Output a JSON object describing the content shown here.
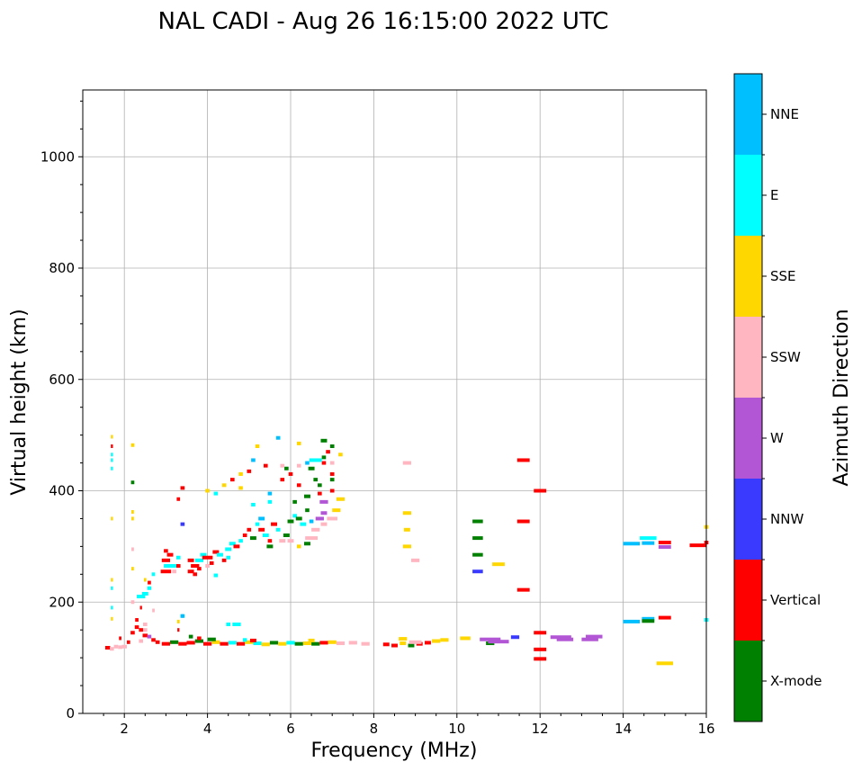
{
  "chart_data": {
    "type": "scatter",
    "title": "NAL CADI - Aug 26 16:15:00 2022 UTC",
    "xlabel": "Frequency (MHz)",
    "ylabel": "Virtual height (km)",
    "xlim": [
      1,
      16
    ],
    "ylim": [
      0,
      1120
    ],
    "xticks": [
      2,
      4,
      6,
      8,
      10,
      12,
      14,
      16
    ],
    "yticks": [
      0,
      200,
      400,
      600,
      800,
      1000
    ],
    "grid": true,
    "colorbar": {
      "label": "Azimuth Direction",
      "categories": [
        {
          "name": "X-mode",
          "color": "#008000"
        },
        {
          "name": "Vertical",
          "color": "#ff0000"
        },
        {
          "name": "NNW",
          "color": "#3a3aff"
        },
        {
          "name": "W",
          "color": "#b356d6"
        },
        {
          "name": "SSW",
          "color": "#ffb6c1"
        },
        {
          "name": "SSE",
          "color": "#ffd700"
        },
        {
          "name": "E",
          "color": "#00ffff"
        },
        {
          "name": "NNE",
          "color": "#00bfff"
        }
      ]
    },
    "points": [
      [
        1.6,
        118,
        1,
        0.12
      ],
      [
        1.7,
        116,
        4,
        0.1
      ],
      [
        1.8,
        120,
        4,
        0.1
      ],
      [
        1.9,
        119,
        4,
        0.1
      ],
      [
        2.0,
        120,
        4,
        0.12
      ],
      [
        1.7,
        190,
        6,
        0.05
      ],
      [
        1.7,
        170,
        5,
        0.05
      ],
      [
        1.7,
        240,
        5,
        0.05
      ],
      [
        1.7,
        225,
        6,
        0.05
      ],
      [
        1.7,
        350,
        5,
        0.05
      ],
      [
        1.7,
        440,
        6,
        0.05
      ],
      [
        1.7,
        455,
        6,
        0.05
      ],
      [
        1.7,
        480,
        1,
        0.05
      ],
      [
        1.7,
        497,
        5,
        0.05
      ],
      [
        1.7,
        465,
        6,
        0.05
      ],
      [
        1.9,
        135,
        1,
        0.06
      ],
      [
        2.1,
        128,
        1,
        0.08
      ],
      [
        2.2,
        145,
        1,
        0.1
      ],
      [
        2.3,
        168,
        1,
        0.08
      ],
      [
        2.3,
        155,
        1,
        0.1
      ],
      [
        2.4,
        150,
        1,
        0.1
      ],
      [
        2.5,
        140,
        1,
        0.12
      ],
      [
        2.5,
        160,
        4,
        0.1
      ],
      [
        2.6,
        138,
        3,
        0.1
      ],
      [
        2.7,
        132,
        1,
        0.1
      ],
      [
        2.8,
        128,
        1,
        0.1
      ],
      [
        2.5,
        150,
        4,
        0.1
      ],
      [
        2.4,
        130,
        4,
        0.1
      ],
      [
        2.2,
        200,
        4,
        0.08
      ],
      [
        2.4,
        210,
        6,
        0.2
      ],
      [
        2.5,
        215,
        6,
        0.15
      ],
      [
        2.6,
        225,
        6,
        0.1
      ],
      [
        2.6,
        235,
        1,
        0.08
      ],
      [
        2.7,
        250,
        6,
        0.08
      ],
      [
        2.5,
        240,
        5,
        0.06
      ],
      [
        2.2,
        260,
        5,
        0.06
      ],
      [
        2.2,
        295,
        4,
        0.06
      ],
      [
        2.2,
        350,
        5,
        0.06
      ],
      [
        2.2,
        362,
        5,
        0.06
      ],
      [
        2.2,
        415,
        0,
        0.08
      ],
      [
        2.2,
        482,
        5,
        0.08
      ],
      [
        2.4,
        190,
        1,
        0.05
      ],
      [
        2.7,
        185,
        4,
        0.06
      ],
      [
        3.0,
        255,
        1,
        0.25
      ],
      [
        3.1,
        265,
        6,
        0.3
      ],
      [
        3.0,
        275,
        1,
        0.2
      ],
      [
        3.1,
        285,
        1,
        0.15
      ],
      [
        3.0,
        292,
        1,
        0.1
      ],
      [
        3.3,
        280,
        6,
        0.1
      ],
      [
        3.3,
        265,
        1,
        0.1
      ],
      [
        3.2,
        255,
        4,
        0.1
      ],
      [
        3.4,
        175,
        7,
        0.1
      ],
      [
        3.3,
        165,
        5,
        0.06
      ],
      [
        3.3,
        150,
        1,
        0.05
      ],
      [
        3.4,
        340,
        2,
        0.1
      ],
      [
        3.3,
        385,
        1,
        0.08
      ],
      [
        3.4,
        405,
        1,
        0.1
      ],
      [
        3.6,
        255,
        1,
        0.15
      ],
      [
        3.7,
        265,
        1,
        0.2
      ],
      [
        3.8,
        275,
        6,
        0.2
      ],
      [
        3.9,
        285,
        6,
        0.15
      ],
      [
        4.0,
        280,
        1,
        0.25
      ],
      [
        4.1,
        270,
        1,
        0.1
      ],
      [
        3.6,
        275,
        1,
        0.15
      ],
      [
        3.8,
        260,
        1,
        0.1
      ],
      [
        4.0,
        265,
        4,
        0.1
      ],
      [
        4.2,
        248,
        6,
        0.1
      ],
      [
        3.7,
        250,
        1,
        0.1
      ],
      [
        4.2,
        290,
        1,
        0.15
      ],
      [
        4.3,
        285,
        6,
        0.15
      ],
      [
        4.4,
        275,
        1,
        0.1
      ],
      [
        4.5,
        280,
        6,
        0.1
      ],
      [
        4.5,
        295,
        6,
        0.15
      ],
      [
        4.6,
        305,
        6,
        0.15
      ],
      [
        4.7,
        300,
        1,
        0.15
      ],
      [
        4.8,
        310,
        6,
        0.1
      ],
      [
        4.9,
        320,
        1,
        0.1
      ],
      [
        5.0,
        330,
        1,
        0.1
      ],
      [
        5.1,
        315,
        0,
        0.15
      ],
      [
        5.2,
        340,
        6,
        0.1
      ],
      [
        5.3,
        350,
        7,
        0.15
      ],
      [
        5.3,
        330,
        1,
        0.15
      ],
      [
        5.4,
        320,
        6,
        0.15
      ],
      [
        5.5,
        300,
        0,
        0.15
      ],
      [
        5.5,
        310,
        1,
        0.1
      ],
      [
        5.6,
        340,
        1,
        0.15
      ],
      [
        5.7,
        330,
        6,
        0.1
      ],
      [
        5.9,
        320,
        0,
        0.15
      ],
      [
        5.8,
        310,
        4,
        0.15
      ],
      [
        6.0,
        345,
        0,
        0.15
      ],
      [
        6.1,
        355,
        6,
        0.1
      ],
      [
        6.2,
        350,
        0,
        0.15
      ],
      [
        6.3,
        340,
        6,
        0.15
      ],
      [
        6.5,
        345,
        7,
        0.1
      ],
      [
        6.6,
        330,
        4,
        0.2
      ],
      [
        6.7,
        350,
        3,
        0.2
      ],
      [
        6.8,
        360,
        3,
        0.15
      ],
      [
        6.8,
        380,
        3,
        0.2
      ],
      [
        7.0,
        350,
        4,
        0.25
      ],
      [
        7.1,
        365,
        5,
        0.2
      ],
      [
        7.2,
        385,
        5,
        0.2
      ],
      [
        6.5,
        315,
        4,
        0.3
      ],
      [
        6.4,
        305,
        0,
        0.15
      ],
      [
        6.0,
        310,
        4,
        0.15
      ],
      [
        6.8,
        340,
        4,
        0.15
      ],
      [
        6.2,
        300,
        5,
        0.1
      ],
      [
        5.1,
        375,
        6,
        0.1
      ],
      [
        5.5,
        395,
        7,
        0.1
      ],
      [
        5.5,
        380,
        6,
        0.1
      ],
      [
        6.1,
        380,
        0,
        0.1
      ],
      [
        6.4,
        390,
        0,
        0.15
      ],
      [
        6.4,
        365,
        0,
        0.1
      ],
      [
        6.7,
        395,
        1,
        0.1
      ],
      [
        6.6,
        420,
        0,
        0.1
      ],
      [
        5.8,
        420,
        1,
        0.1
      ],
      [
        6.0,
        430,
        1,
        0.1
      ],
      [
        6.2,
        410,
        1,
        0.1
      ],
      [
        6.7,
        410,
        0,
        0.1
      ],
      [
        7.0,
        400,
        1,
        0.1
      ],
      [
        7.0,
        420,
        0,
        0.1
      ],
      [
        7.0,
        430,
        1,
        0.1
      ],
      [
        6.5,
        440,
        0,
        0.15
      ],
      [
        6.8,
        450,
        1,
        0.1
      ],
      [
        5.9,
        440,
        0,
        0.1
      ],
      [
        6.4,
        450,
        7,
        0.1
      ],
      [
        6.6,
        455,
        6,
        0.3
      ],
      [
        6.8,
        460,
        0,
        0.1
      ],
      [
        7.0,
        450,
        4,
        0.1
      ],
      [
        6.2,
        445,
        4,
        0.1
      ],
      [
        5.4,
        445,
        1,
        0.1
      ],
      [
        5.8,
        445,
        4,
        0.1
      ],
      [
        6.9,
        470,
        1,
        0.1
      ],
      [
        7.0,
        480,
        0,
        0.1
      ],
      [
        7.2,
        465,
        5,
        0.1
      ],
      [
        6.8,
        490,
        0,
        0.15
      ],
      [
        6.2,
        485,
        5,
        0.1
      ],
      [
        5.7,
        495,
        7,
        0.1
      ],
      [
        5.2,
        480,
        5,
        0.1
      ],
      [
        5.0,
        435,
        1,
        0.1
      ],
      [
        4.8,
        430,
        5,
        0.1
      ],
      [
        4.6,
        420,
        1,
        0.1
      ],
      [
        4.4,
        410,
        5,
        0.1
      ],
      [
        4.0,
        400,
        5,
        0.1
      ],
      [
        4.2,
        395,
        6,
        0.1
      ],
      [
        5.1,
        455,
        7,
        0.1
      ],
      [
        4.8,
        405,
        5,
        0.1
      ],
      [
        4.7,
        160,
        6,
        0.2
      ],
      [
        4.5,
        160,
        6,
        0.1
      ],
      [
        3.4,
        175,
        7,
        0.06
      ],
      [
        3.0,
        125,
        1,
        0.2
      ],
      [
        3.2,
        128,
        0,
        0.2
      ],
      [
        3.4,
        125,
        1,
        0.2
      ],
      [
        3.6,
        127,
        1,
        0.2
      ],
      [
        3.8,
        130,
        0,
        0.2
      ],
      [
        4.0,
        125,
        1,
        0.2
      ],
      [
        4.2,
        128,
        5,
        0.2
      ],
      [
        4.4,
        125,
        1,
        0.2
      ],
      [
        4.6,
        127,
        6,
        0.2
      ],
      [
        4.8,
        125,
        1,
        0.2
      ],
      [
        5.0,
        128,
        5,
        0.2
      ],
      [
        5.2,
        126,
        6,
        0.2
      ],
      [
        5.4,
        124,
        5,
        0.2
      ],
      [
        5.6,
        127,
        0,
        0.2
      ],
      [
        5.8,
        125,
        5,
        0.2
      ],
      [
        6.0,
        127,
        6,
        0.2
      ],
      [
        6.2,
        125,
        0,
        0.2
      ],
      [
        6.4,
        126,
        5,
        0.2
      ],
      [
        6.6,
        125,
        0,
        0.2
      ],
      [
        6.8,
        127,
        1,
        0.2
      ],
      [
        7.0,
        128,
        5,
        0.2
      ],
      [
        7.2,
        126,
        4,
        0.2
      ],
      [
        7.5,
        127,
        4,
        0.2
      ],
      [
        7.8,
        125,
        4,
        0.2
      ],
      [
        4.1,
        133,
        0,
        0.2
      ],
      [
        5.1,
        131,
        1,
        0.15
      ],
      [
        6.5,
        131,
        5,
        0.15
      ],
      [
        3.8,
        135,
        1,
        0.1
      ],
      [
        4.9,
        132,
        6,
        0.1
      ],
      [
        3.6,
        138,
        0,
        0.1
      ],
      [
        8.3,
        124,
        1,
        0.15
      ],
      [
        8.5,
        122,
        1,
        0.15
      ],
      [
        8.7,
        126,
        5,
        0.15
      ],
      [
        8.9,
        122,
        0,
        0.15
      ],
      [
        9.1,
        125,
        1,
        0.15
      ],
      [
        9.3,
        127,
        1,
        0.15
      ],
      [
        9.0,
        128,
        4,
        0.3
      ],
      [
        9.5,
        130,
        5,
        0.2
      ],
      [
        9.7,
        132,
        5,
        0.2
      ],
      [
        10.2,
        135,
        5,
        0.25
      ],
      [
        10.8,
        133,
        3,
        0.5
      ],
      [
        10.8,
        126,
        0,
        0.2
      ],
      [
        11.0,
        129,
        3,
        0.5
      ],
      [
        11.4,
        137,
        2,
        0.2
      ],
      [
        12.5,
        137,
        3,
        0.5
      ],
      [
        12.6,
        133,
        3,
        0.4
      ],
      [
        13.2,
        133,
        3,
        0.4
      ],
      [
        13.3,
        138,
        3,
        0.4
      ],
      [
        8.7,
        134,
        5,
        0.2
      ],
      [
        8.8,
        300,
        5,
        0.2
      ],
      [
        8.8,
        330,
        5,
        0.15
      ],
      [
        8.8,
        360,
        5,
        0.2
      ],
      [
        8.8,
        450,
        4,
        0.2
      ],
      [
        9.0,
        275,
        4,
        0.2
      ],
      [
        10.5,
        345,
        0,
        0.25
      ],
      [
        10.5,
        315,
        0,
        0.25
      ],
      [
        10.5,
        285,
        0,
        0.25
      ],
      [
        10.5,
        255,
        2,
        0.25
      ],
      [
        11.0,
        268,
        5,
        0.3
      ],
      [
        11.6,
        455,
        1,
        0.3
      ],
      [
        11.6,
        345,
        1,
        0.3
      ],
      [
        11.6,
        222,
        1,
        0.3
      ],
      [
        12.0,
        400,
        1,
        0.3
      ],
      [
        12.0,
        145,
        1,
        0.3
      ],
      [
        12.0,
        115,
        1,
        0.3
      ],
      [
        12.0,
        98,
        1,
        0.3
      ],
      [
        14.2,
        305,
        7,
        0.4
      ],
      [
        14.2,
        165,
        7,
        0.4
      ],
      [
        14.6,
        315,
        6,
        0.4
      ],
      [
        14.6,
        306,
        7,
        0.3
      ],
      [
        14.6,
        170,
        7,
        0.3
      ],
      [
        14.6,
        166,
        0,
        0.3
      ],
      [
        15.0,
        307,
        1,
        0.3
      ],
      [
        15.0,
        299,
        3,
        0.3
      ],
      [
        15.0,
        172,
        1,
        0.3
      ],
      [
        15.0,
        90,
        5,
        0.4
      ],
      [
        15.8,
        302,
        1,
        0.4
      ],
      [
        16.0,
        307,
        1,
        0.1
      ],
      [
        16.0,
        335,
        5,
        0.1
      ],
      [
        16.0,
        168,
        6,
        0.1
      ]
    ]
  }
}
